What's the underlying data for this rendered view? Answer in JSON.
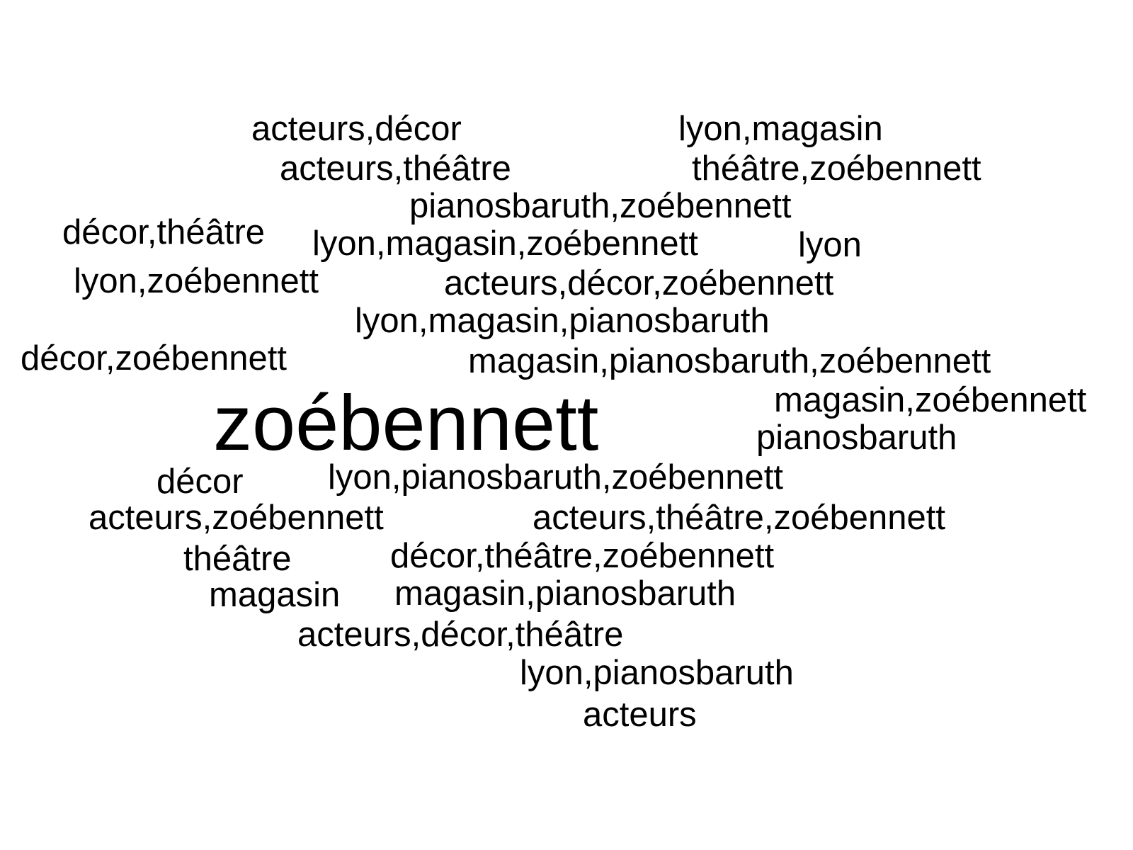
{
  "words": [
    "acteurs,décor",
    "lyon,magasin",
    "acteurs,théâtre",
    "théâtre,zoébennett",
    "pianosbaruth,zoébennett",
    "décor,théâtre",
    "lyon,magasin,zoébennett",
    "lyon",
    "lyon,zoébennett",
    "acteurs,décor,zoébennett",
    "lyon,magasin,pianosbaruth",
    "décor,zoébennett",
    "magasin,pianosbaruth,zoébennett",
    "magasin,zoébennett",
    "zoébennett",
    "pianosbaruth",
    "décor",
    "lyon,pianosbaruth,zoébennett",
    "acteurs,zoébennett",
    "acteurs,théâtre,zoébennett",
    "théâtre",
    "décor,théâtre,zoébennett",
    "magasin",
    "magasin,pianosbaruth",
    "acteurs,décor,théâtre",
    "lyon,pianosbaruth",
    "acteurs"
  ],
  "text_color": "#000000",
  "background_color": "#ffffff"
}
